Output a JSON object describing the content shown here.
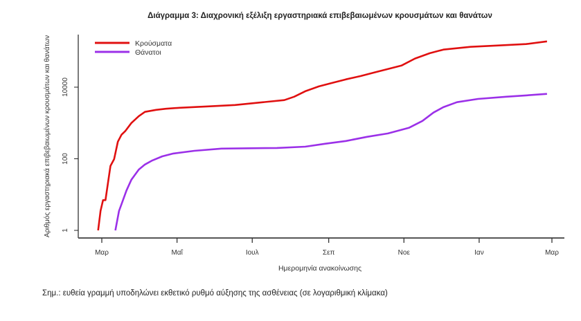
{
  "chart_data": {
    "type": "line",
    "title": "Διάγραμμα 3: Διαχρονική εξέλιξη εργαστηριακά επιβεβαιωμένων κρουσμάτων και θανάτων",
    "xlabel": "Ημερομηνία ανακοίνωσης",
    "ylabel": "Αριθμός εργαστηριακά επιβεβαιωμένων κρουσμάτων και θανάτων",
    "yscale": "log",
    "ylim": [
      1,
      250000
    ],
    "xlim": [
      -19,
      376
    ],
    "x_unit": "days since 1 March 2020",
    "x_ticks": [
      {
        "day": 0,
        "label": "Μαρ"
      },
      {
        "day": 61,
        "label": "Μαΐ"
      },
      {
        "day": 122,
        "label": "Ιουλ"
      },
      {
        "day": 184,
        "label": "Σεπ"
      },
      {
        "day": 245,
        "label": "Νοε"
      },
      {
        "day": 306,
        "label": "Ιαν"
      },
      {
        "day": 365,
        "label": "Μαρ"
      }
    ],
    "y_ticks": [
      {
        "value": 1,
        "label": "1"
      },
      {
        "value": 100,
        "label": "100"
      },
      {
        "value": 10000,
        "label": "10000"
      }
    ],
    "legend_position": "top-left",
    "grid": false,
    "series": [
      {
        "name": "Κρούσματα",
        "color": "#e01010",
        "x": [
          -3,
          -1,
          1,
          3,
          5,
          7,
          10,
          13,
          16,
          19,
          24,
          30,
          35,
          44,
          52,
          63,
          86,
          108,
          131,
          148,
          156,
          165,
          176,
          187,
          198,
          210,
          221,
          232,
          243,
          254,
          266,
          277,
          299,
          322,
          344,
          361
        ],
        "values": [
          1,
          3.5,
          7,
          7,
          21,
          63,
          98,
          300,
          470,
          590,
          1000,
          1550,
          2040,
          2320,
          2500,
          2650,
          2900,
          3170,
          3800,
          4360,
          5400,
          7700,
          10500,
          13200,
          16500,
          20500,
          25700,
          32100,
          40000,
          63000,
          89000,
          112000,
          134000,
          146000,
          160000,
          190000
        ]
      },
      {
        "name": "Θάνατοι",
        "color": "#9b30e8",
        "x": [
          11,
          14,
          16,
          20,
          24,
          30,
          35,
          41,
          49,
          58,
          75,
          97,
          142,
          165,
          181,
          198,
          215,
          232,
          249,
          260,
          269,
          277,
          288,
          305,
          328,
          344,
          361
        ],
        "values": [
          1,
          3.5,
          5.4,
          13,
          26,
          50,
          69,
          90,
          117,
          140,
          167,
          192,
          200,
          218,
          263,
          314,
          410,
          510,
          730,
          1140,
          1950,
          2770,
          3800,
          4700,
          5400,
          5900,
          6500
        ]
      }
    ]
  },
  "note": "Σημ.: ευθεία γραμμή υποδηλώνει εκθετικό ρυθμό αύξησης της ασθένειας (σε λογαριθμική κλίμακα)"
}
